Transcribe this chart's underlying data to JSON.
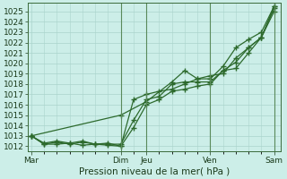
{
  "title": "Pression niveau de la mer( hPa )",
  "bg_color": "#cceee8",
  "grid_color": "#aad4cc",
  "line_color": "#2d6a2d",
  "vline_color": "#5a8a5a",
  "ylim": [
    1011.5,
    1025.8
  ],
  "yticks": [
    1012,
    1013,
    1014,
    1015,
    1016,
    1017,
    1018,
    1019,
    1020,
    1021,
    1022,
    1023,
    1024,
    1025
  ],
  "xtick_labels": [
    "Mar",
    "Dim",
    "Jeu",
    "Ven",
    "Sam"
  ],
  "xtick_positions": [
    0,
    7,
    9,
    14,
    19
  ],
  "xday_vlines": [
    7,
    9,
    14,
    19
  ],
  "xlim": [
    -0.3,
    19.5
  ],
  "series1_x": [
    0,
    1,
    2,
    3,
    4,
    5,
    6,
    7,
    8,
    9,
    10,
    11,
    12,
    13,
    14,
    15,
    16,
    17,
    18,
    19
  ],
  "series1_y": [
    1013.0,
    1012.2,
    1012.2,
    1012.3,
    1012.1,
    1012.2,
    1012.1,
    1012.0,
    1013.8,
    1016.0,
    1016.5,
    1017.3,
    1017.5,
    1017.8,
    1018.0,
    1019.3,
    1020.1,
    1021.5,
    1022.5,
    1025.3
  ],
  "series2_x": [
    0,
    1,
    2,
    3,
    4,
    5,
    6,
    7,
    8,
    9,
    10,
    11,
    12,
    13,
    14,
    15,
    16,
    17,
    18,
    19
  ],
  "series2_y": [
    1013.0,
    1012.2,
    1012.4,
    1012.2,
    1012.4,
    1012.2,
    1012.2,
    1012.2,
    1014.5,
    1016.5,
    1016.8,
    1018.0,
    1018.2,
    1018.2,
    1018.2,
    1019.3,
    1019.5,
    1021.0,
    1022.5,
    1025.0
  ],
  "series3_x": [
    0,
    1,
    2,
    3,
    4,
    5,
    6,
    7,
    8,
    9,
    10,
    11,
    12,
    13,
    14,
    15,
    16,
    17,
    18,
    19
  ],
  "series3_y": [
    1013.0,
    1012.3,
    1012.5,
    1012.3,
    1012.5,
    1012.2,
    1012.3,
    1012.0,
    1016.5,
    1017.0,
    1017.3,
    1017.5,
    1018.0,
    1018.5,
    1018.8,
    1019.0,
    1020.5,
    1021.5,
    1022.5,
    1025.5
  ],
  "series4_x": [
    0,
    7,
    9,
    11,
    12,
    13,
    14,
    15,
    16,
    17,
    18,
    19
  ],
  "series4_y": [
    1013.0,
    1015.0,
    1016.3,
    1018.2,
    1019.3,
    1018.5,
    1018.5,
    1019.7,
    1021.5,
    1022.3,
    1023.0,
    1025.5
  ],
  "ylabel_fontsize": 6.5,
  "xlabel_fontsize": 7.5,
  "tick_fontsize": 6.5
}
